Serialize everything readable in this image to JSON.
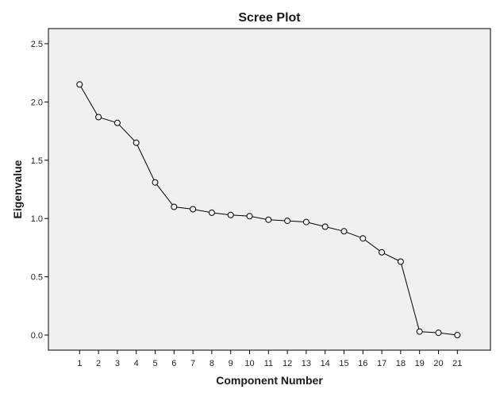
{
  "chart_data": {
    "type": "line",
    "title": "Scree Plot",
    "xlabel": "Component Number",
    "ylabel": "Eigenvalue",
    "x": [
      1,
      2,
      3,
      4,
      5,
      6,
      7,
      8,
      9,
      10,
      11,
      12,
      13,
      14,
      15,
      16,
      17,
      18,
      19,
      20,
      21
    ],
    "series": [
      {
        "values": [
          2.15,
          1.87,
          1.82,
          1.65,
          1.31,
          1.1,
          1.08,
          1.05,
          1.03,
          1.02,
          0.99,
          0.98,
          0.97,
          0.93,
          0.89,
          0.83,
          0.71,
          0.63,
          0.03,
          0.02,
          0.0
        ]
      }
    ],
    "yticks": [
      "0.0",
      "0.5",
      "1.0",
      "1.5",
      "2.0",
      "2.5"
    ],
    "xticks": [
      "1",
      "2",
      "3",
      "4",
      "5",
      "6",
      "7",
      "8",
      "9",
      "10",
      "11",
      "12",
      "13",
      "14",
      "15",
      "16",
      "17",
      "18",
      "19",
      "20",
      "21"
    ],
    "ylim": [
      0,
      2.5
    ],
    "xlim": [
      0,
      22
    ],
    "grid": false,
    "colors": {
      "plot_background": "#f0f0f0",
      "line": "#000000",
      "marker_fill": "#f0f0f0",
      "frame": "#000000"
    }
  }
}
